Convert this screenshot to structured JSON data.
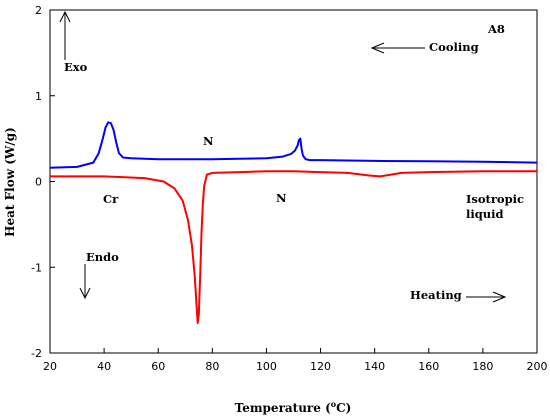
{
  "chart_data": {
    "type": "line",
    "xlabel_main": "Temperature (",
    "xlabel_sup": "o",
    "xlabel_tail": "C)",
    "ylabel": "Heat Flow (W/g)",
    "xlim": [
      20,
      200
    ],
    "ylim": [
      -2,
      2
    ],
    "xticks": [
      20,
      40,
      60,
      80,
      100,
      120,
      140,
      160,
      180,
      200
    ],
    "yticks": [
      -2,
      -1,
      0,
      1,
      2
    ],
    "grid": false,
    "series": [
      {
        "color": "#0000ff",
        "x": [
          20,
          30,
          36,
          38,
          39.5,
          40.5,
          41.5,
          42.5,
          43.5,
          44.5,
          45.5,
          47,
          50,
          60,
          70,
          80,
          90,
          100,
          106,
          109,
          110.5,
          111.5,
          112,
          112.5,
          113,
          113.5,
          114.5,
          116,
          120,
          140,
          160,
          180,
          200
        ],
        "y": [
          0.16,
          0.17,
          0.22,
          0.33,
          0.5,
          0.63,
          0.69,
          0.68,
          0.6,
          0.45,
          0.33,
          0.28,
          0.27,
          0.26,
          0.26,
          0.26,
          0.265,
          0.27,
          0.29,
          0.32,
          0.36,
          0.42,
          0.48,
          0.5,
          0.38,
          0.3,
          0.26,
          0.25,
          0.25,
          0.24,
          0.235,
          0.23,
          0.22
        ]
      },
      {
        "color": "#ff0000",
        "x": [
          20,
          40,
          55,
          62,
          66,
          69,
          71,
          72.5,
          73.5,
          74.2,
          74.6,
          75,
          75.5,
          76,
          76.5,
          77,
          78,
          80,
          90,
          100,
          110,
          120,
          130,
          138,
          142,
          146,
          150,
          160,
          180,
          200
        ],
        "y": [
          0.06,
          0.06,
          0.04,
          0.0,
          -0.08,
          -0.22,
          -0.45,
          -0.75,
          -1.1,
          -1.45,
          -1.65,
          -1.55,
          -1.1,
          -0.6,
          -0.25,
          -0.05,
          0.08,
          0.1,
          0.11,
          0.12,
          0.12,
          0.11,
          0.1,
          0.07,
          0.06,
          0.08,
          0.1,
          0.11,
          0.12,
          0.12
        ]
      }
    ],
    "annotations": {
      "sample": "A8",
      "exo": "Exo",
      "endo": "Endo",
      "cooling": "Cooling",
      "heating": "Heating",
      "n_cooling": "N",
      "n_heating": "N",
      "cr": "Cr",
      "iso_line1": "Isotropic",
      "iso_line2": "liquid"
    }
  }
}
